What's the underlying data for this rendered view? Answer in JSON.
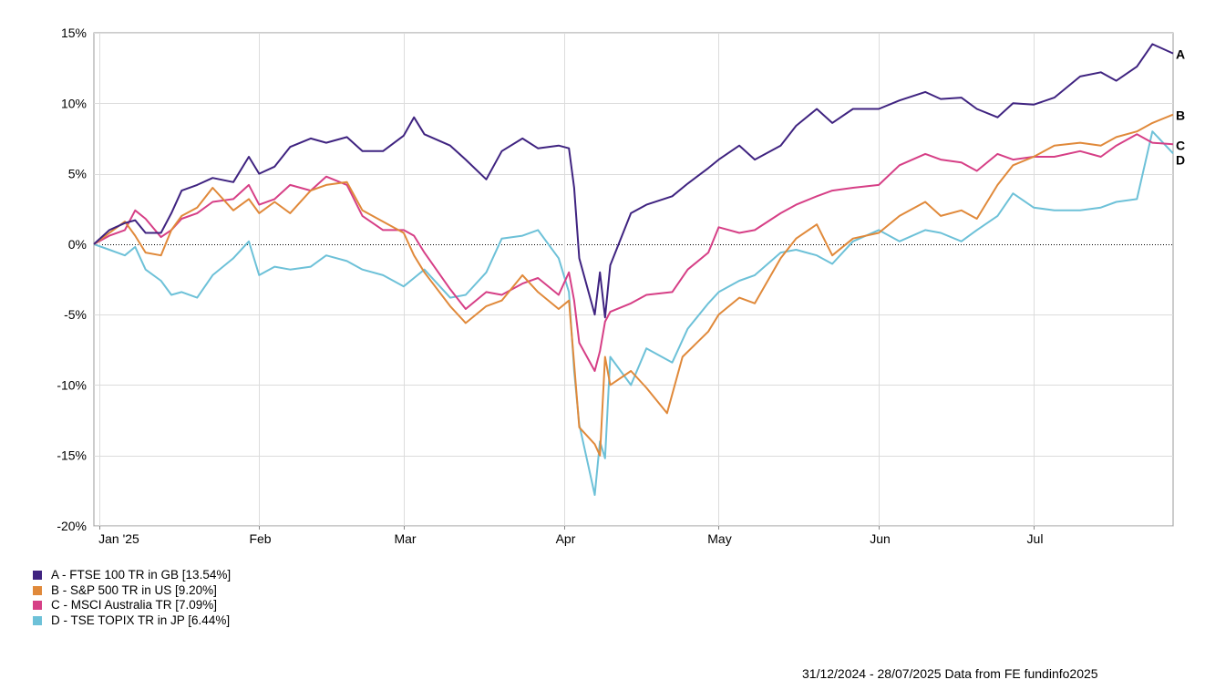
{
  "chart_data": {
    "type": "line",
    "x_start": "2024-12-31",
    "x_end": "2025-07-28",
    "x_tick_labels": [
      {
        "date": "2025-01-01",
        "label": "Jan '25"
      },
      {
        "date": "2025-02-01",
        "label": "Feb"
      },
      {
        "date": "2025-03-01",
        "label": "Mar"
      },
      {
        "date": "2025-04-01",
        "label": "Apr"
      },
      {
        "date": "2025-05-01",
        "label": "May"
      },
      {
        "date": "2025-06-01",
        "label": "Jun"
      },
      {
        "date": "2025-07-01",
        "label": "Jul"
      }
    ],
    "y_ticks": [
      15,
      10,
      5,
      0,
      -5,
      -10,
      -15,
      -20
    ],
    "y_tick_labels": [
      "15%",
      "10%",
      "5%",
      "0%",
      "-5%",
      "-10%",
      "-15%",
      "-20%"
    ],
    "ylim": [
      -20,
      15
    ],
    "grid": true,
    "zero_line": "dotted",
    "series": [
      {
        "name": "A - FTSE 100 TR in GB [13.54%]",
        "end_label": "A",
        "color": "#3f2380",
        "points": [
          [
            "2024-12-31",
            0
          ],
          [
            "2025-01-03",
            1.0
          ],
          [
            "2025-01-06",
            1.5
          ],
          [
            "2025-01-08",
            1.7
          ],
          [
            "2025-01-10",
            0.8
          ],
          [
            "2025-01-13",
            0.8
          ],
          [
            "2025-01-15",
            2.2
          ],
          [
            "2025-01-17",
            3.8
          ],
          [
            "2025-01-20",
            4.2
          ],
          [
            "2025-01-23",
            4.7
          ],
          [
            "2025-01-27",
            4.4
          ],
          [
            "2025-01-30",
            6.2
          ],
          [
            "2025-02-01",
            5.0
          ],
          [
            "2025-02-04",
            5.5
          ],
          [
            "2025-02-07",
            6.9
          ],
          [
            "2025-02-11",
            7.5
          ],
          [
            "2025-02-14",
            7.2
          ],
          [
            "2025-02-18",
            7.6
          ],
          [
            "2025-02-21",
            6.6
          ],
          [
            "2025-02-25",
            6.6
          ],
          [
            "2025-03-01",
            7.7
          ],
          [
            "2025-03-03",
            9.0
          ],
          [
            "2025-03-05",
            7.8
          ],
          [
            "2025-03-10",
            7.0
          ],
          [
            "2025-03-13",
            6.0
          ],
          [
            "2025-03-17",
            4.6
          ],
          [
            "2025-03-20",
            6.6
          ],
          [
            "2025-03-24",
            7.5
          ],
          [
            "2025-03-27",
            6.8
          ],
          [
            "2025-03-31",
            7.0
          ],
          [
            "2025-04-02",
            6.8
          ],
          [
            "2025-04-03",
            4.0
          ],
          [
            "2025-04-04",
            -1.0
          ],
          [
            "2025-04-07",
            -5.0
          ],
          [
            "2025-04-08",
            -2.0
          ],
          [
            "2025-04-09",
            -5.2
          ],
          [
            "2025-04-10",
            -1.5
          ],
          [
            "2025-04-14",
            2.2
          ],
          [
            "2025-04-17",
            2.8
          ],
          [
            "2025-04-22",
            3.4
          ],
          [
            "2025-04-25",
            4.3
          ],
          [
            "2025-04-29",
            5.4
          ],
          [
            "2025-05-01",
            6.0
          ],
          [
            "2025-05-05",
            7.0
          ],
          [
            "2025-05-08",
            6.0
          ],
          [
            "2025-05-13",
            7.0
          ],
          [
            "2025-05-16",
            8.4
          ],
          [
            "2025-05-20",
            9.6
          ],
          [
            "2025-05-23",
            8.6
          ],
          [
            "2025-05-27",
            9.6
          ],
          [
            "2025-06-01",
            9.6
          ],
          [
            "2025-06-05",
            10.2
          ],
          [
            "2025-06-10",
            10.8
          ],
          [
            "2025-06-13",
            10.3
          ],
          [
            "2025-06-17",
            10.4
          ],
          [
            "2025-06-20",
            9.6
          ],
          [
            "2025-06-24",
            9.0
          ],
          [
            "2025-06-27",
            10.0
          ],
          [
            "2025-07-01",
            9.9
          ],
          [
            "2025-07-05",
            10.4
          ],
          [
            "2025-07-10",
            11.9
          ],
          [
            "2025-07-14",
            12.2
          ],
          [
            "2025-07-17",
            11.6
          ],
          [
            "2025-07-21",
            12.6
          ],
          [
            "2025-07-24",
            14.2
          ],
          [
            "2025-07-28",
            13.54
          ]
        ]
      },
      {
        "name": "B - S&P 500 TR in US [9.20%]",
        "end_label": "B",
        "color": "#e0893a",
        "points": [
          [
            "2024-12-31",
            0
          ],
          [
            "2025-01-03",
            0.8
          ],
          [
            "2025-01-06",
            1.6
          ],
          [
            "2025-01-08",
            0.6
          ],
          [
            "2025-01-10",
            -0.6
          ],
          [
            "2025-01-13",
            -0.8
          ],
          [
            "2025-01-15",
            1.0
          ],
          [
            "2025-01-17",
            2.0
          ],
          [
            "2025-01-20",
            2.6
          ],
          [
            "2025-01-23",
            4.0
          ],
          [
            "2025-01-27",
            2.4
          ],
          [
            "2025-01-30",
            3.2
          ],
          [
            "2025-02-01",
            2.2
          ],
          [
            "2025-02-04",
            3.0
          ],
          [
            "2025-02-07",
            2.2
          ],
          [
            "2025-02-11",
            3.8
          ],
          [
            "2025-02-14",
            4.2
          ],
          [
            "2025-02-18",
            4.4
          ],
          [
            "2025-02-21",
            2.4
          ],
          [
            "2025-02-25",
            1.6
          ],
          [
            "2025-03-01",
            0.8
          ],
          [
            "2025-03-03",
            -0.8
          ],
          [
            "2025-03-05",
            -2.0
          ],
          [
            "2025-03-10",
            -4.4
          ],
          [
            "2025-03-13",
            -5.6
          ],
          [
            "2025-03-17",
            -4.4
          ],
          [
            "2025-03-20",
            -4.0
          ],
          [
            "2025-03-24",
            -2.2
          ],
          [
            "2025-03-27",
            -3.4
          ],
          [
            "2025-03-31",
            -4.6
          ],
          [
            "2025-04-02",
            -4.0
          ],
          [
            "2025-04-03",
            -8.5
          ],
          [
            "2025-04-04",
            -13.0
          ],
          [
            "2025-04-07",
            -14.2
          ],
          [
            "2025-04-08",
            -15.0
          ],
          [
            "2025-04-09",
            -8.0
          ],
          [
            "2025-04-10",
            -10.0
          ],
          [
            "2025-04-14",
            -9.0
          ],
          [
            "2025-04-17",
            -10.2
          ],
          [
            "2025-04-21",
            -12.0
          ],
          [
            "2025-04-24",
            -8.0
          ],
          [
            "2025-04-29",
            -6.2
          ],
          [
            "2025-05-01",
            -5.0
          ],
          [
            "2025-05-05",
            -3.8
          ],
          [
            "2025-05-08",
            -4.2
          ],
          [
            "2025-05-13",
            -1.0
          ],
          [
            "2025-05-16",
            0.4
          ],
          [
            "2025-05-20",
            1.4
          ],
          [
            "2025-05-23",
            -0.8
          ],
          [
            "2025-05-27",
            0.4
          ],
          [
            "2025-06-01",
            0.8
          ],
          [
            "2025-06-05",
            2.0
          ],
          [
            "2025-06-10",
            3.0
          ],
          [
            "2025-06-13",
            2.0
          ],
          [
            "2025-06-17",
            2.4
          ],
          [
            "2025-06-20",
            1.8
          ],
          [
            "2025-06-24",
            4.2
          ],
          [
            "2025-06-27",
            5.6
          ],
          [
            "2025-07-01",
            6.2
          ],
          [
            "2025-07-05",
            7.0
          ],
          [
            "2025-07-10",
            7.2
          ],
          [
            "2025-07-14",
            7.0
          ],
          [
            "2025-07-17",
            7.6
          ],
          [
            "2025-07-21",
            8.0
          ],
          [
            "2025-07-24",
            8.6
          ],
          [
            "2025-07-28",
            9.2
          ]
        ]
      },
      {
        "name": "C - MSCI Australia TR [7.09%]",
        "end_label": "C",
        "color": "#d63f86",
        "points": [
          [
            "2024-12-31",
            0
          ],
          [
            "2025-01-03",
            0.6
          ],
          [
            "2025-01-06",
            1.0
          ],
          [
            "2025-01-08",
            2.4
          ],
          [
            "2025-01-10",
            1.8
          ],
          [
            "2025-01-13",
            0.5
          ],
          [
            "2025-01-15",
            1.0
          ],
          [
            "2025-01-17",
            1.8
          ],
          [
            "2025-01-20",
            2.2
          ],
          [
            "2025-01-23",
            3.0
          ],
          [
            "2025-01-27",
            3.2
          ],
          [
            "2025-01-30",
            4.2
          ],
          [
            "2025-02-01",
            2.8
          ],
          [
            "2025-02-04",
            3.2
          ],
          [
            "2025-02-07",
            4.2
          ],
          [
            "2025-02-11",
            3.8
          ],
          [
            "2025-02-14",
            4.8
          ],
          [
            "2025-02-18",
            4.2
          ],
          [
            "2025-02-21",
            2.0
          ],
          [
            "2025-02-25",
            1.0
          ],
          [
            "2025-03-01",
            1.0
          ],
          [
            "2025-03-03",
            0.6
          ],
          [
            "2025-03-05",
            -0.6
          ],
          [
            "2025-03-10",
            -3.2
          ],
          [
            "2025-03-13",
            -4.6
          ],
          [
            "2025-03-17",
            -3.4
          ],
          [
            "2025-03-20",
            -3.6
          ],
          [
            "2025-03-24",
            -2.8
          ],
          [
            "2025-03-27",
            -2.4
          ],
          [
            "2025-03-31",
            -3.6
          ],
          [
            "2025-04-02",
            -2.0
          ],
          [
            "2025-04-03",
            -4.0
          ],
          [
            "2025-04-04",
            -7.0
          ],
          [
            "2025-04-07",
            -9.0
          ],
          [
            "2025-04-08",
            -7.6
          ],
          [
            "2025-04-09",
            -5.5
          ],
          [
            "2025-04-10",
            -4.8
          ],
          [
            "2025-04-14",
            -4.2
          ],
          [
            "2025-04-17",
            -3.6
          ],
          [
            "2025-04-22",
            -3.4
          ],
          [
            "2025-04-25",
            -1.8
          ],
          [
            "2025-04-29",
            -0.6
          ],
          [
            "2025-05-01",
            1.2
          ],
          [
            "2025-05-05",
            0.8
          ],
          [
            "2025-05-08",
            1.0
          ],
          [
            "2025-05-13",
            2.2
          ],
          [
            "2025-05-16",
            2.8
          ],
          [
            "2025-05-20",
            3.4
          ],
          [
            "2025-05-23",
            3.8
          ],
          [
            "2025-05-27",
            4.0
          ],
          [
            "2025-06-01",
            4.2
          ],
          [
            "2025-06-05",
            5.6
          ],
          [
            "2025-06-10",
            6.4
          ],
          [
            "2025-06-13",
            6.0
          ],
          [
            "2025-06-17",
            5.8
          ],
          [
            "2025-06-20",
            5.2
          ],
          [
            "2025-06-24",
            6.4
          ],
          [
            "2025-06-27",
            6.0
          ],
          [
            "2025-07-01",
            6.2
          ],
          [
            "2025-07-05",
            6.2
          ],
          [
            "2025-07-10",
            6.6
          ],
          [
            "2025-07-14",
            6.2
          ],
          [
            "2025-07-17",
            7.0
          ],
          [
            "2025-07-21",
            7.8
          ],
          [
            "2025-07-24",
            7.2
          ],
          [
            "2025-07-28",
            7.09
          ]
        ]
      },
      {
        "name": "D - TSE TOPIX TR in JP [6.44%]",
        "end_label": "D",
        "color": "#6dc1d8",
        "points": [
          [
            "2024-12-31",
            0
          ],
          [
            "2025-01-03",
            -0.4
          ],
          [
            "2025-01-06",
            -0.8
          ],
          [
            "2025-01-08",
            -0.2
          ],
          [
            "2025-01-10",
            -1.8
          ],
          [
            "2025-01-13",
            -2.6
          ],
          [
            "2025-01-15",
            -3.6
          ],
          [
            "2025-01-17",
            -3.4
          ],
          [
            "2025-01-20",
            -3.8
          ],
          [
            "2025-01-23",
            -2.2
          ],
          [
            "2025-01-27",
            -1.0
          ],
          [
            "2025-01-30",
            0.2
          ],
          [
            "2025-02-01",
            -2.2
          ],
          [
            "2025-02-04",
            -1.6
          ],
          [
            "2025-02-07",
            -1.8
          ],
          [
            "2025-02-11",
            -1.6
          ],
          [
            "2025-02-14",
            -0.8
          ],
          [
            "2025-02-18",
            -1.2
          ],
          [
            "2025-02-21",
            -1.8
          ],
          [
            "2025-02-25",
            -2.2
          ],
          [
            "2025-03-01",
            -3.0
          ],
          [
            "2025-03-03",
            -2.4
          ],
          [
            "2025-03-05",
            -1.8
          ],
          [
            "2025-03-10",
            -3.8
          ],
          [
            "2025-03-13",
            -3.6
          ],
          [
            "2025-03-17",
            -2.0
          ],
          [
            "2025-03-20",
            0.4
          ],
          [
            "2025-03-24",
            0.6
          ],
          [
            "2025-03-27",
            1.0
          ],
          [
            "2025-03-31",
            -1.0
          ],
          [
            "2025-04-02",
            -3.4
          ],
          [
            "2025-04-03",
            -9.0
          ],
          [
            "2025-04-04",
            -12.8
          ],
          [
            "2025-04-07",
            -17.8
          ],
          [
            "2025-04-08",
            -14.0
          ],
          [
            "2025-04-09",
            -15.2
          ],
          [
            "2025-04-10",
            -8.0
          ],
          [
            "2025-04-14",
            -10.0
          ],
          [
            "2025-04-17",
            -7.4
          ],
          [
            "2025-04-22",
            -8.4
          ],
          [
            "2025-04-25",
            -6.0
          ],
          [
            "2025-04-29",
            -4.2
          ],
          [
            "2025-05-01",
            -3.4
          ],
          [
            "2025-05-05",
            -2.6
          ],
          [
            "2025-05-08",
            -2.2
          ],
          [
            "2025-05-13",
            -0.6
          ],
          [
            "2025-05-16",
            -0.4
          ],
          [
            "2025-05-20",
            -0.8
          ],
          [
            "2025-05-23",
            -1.4
          ],
          [
            "2025-05-27",
            0.2
          ],
          [
            "2025-06-01",
            1.0
          ],
          [
            "2025-06-05",
            0.2
          ],
          [
            "2025-06-10",
            1.0
          ],
          [
            "2025-06-13",
            0.8
          ],
          [
            "2025-06-17",
            0.2
          ],
          [
            "2025-06-20",
            1.0
          ],
          [
            "2025-06-24",
            2.0
          ],
          [
            "2025-06-27",
            3.6
          ],
          [
            "2025-07-01",
            2.6
          ],
          [
            "2025-07-05",
            2.4
          ],
          [
            "2025-07-10",
            2.4
          ],
          [
            "2025-07-14",
            2.6
          ],
          [
            "2025-07-17",
            3.0
          ],
          [
            "2025-07-21",
            3.2
          ],
          [
            "2025-07-24",
            8.0
          ],
          [
            "2025-07-28",
            6.44
          ]
        ]
      }
    ]
  },
  "legend": {
    "items": [
      {
        "label": "A - FTSE 100 TR in GB [13.54%]",
        "color": "#3f2380"
      },
      {
        "label": "B - S&P 500 TR in US [9.20%]",
        "color": "#e0893a"
      },
      {
        "label": "C - MSCI Australia TR [7.09%]",
        "color": "#d63f86"
      },
      {
        "label": "D - TSE TOPIX TR in JP [6.44%]",
        "color": "#6dc1d8"
      }
    ]
  },
  "footer": {
    "source_text": "31/12/2024 - 28/07/2025 Data from FE fundinfo2025"
  }
}
